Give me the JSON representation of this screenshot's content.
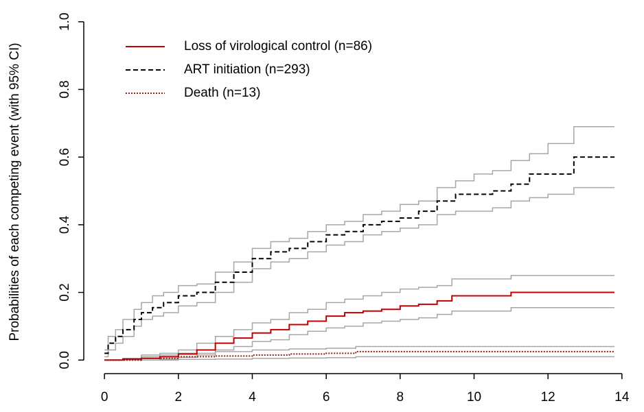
{
  "chart_data": {
    "type": "line",
    "drawstyle": "steps-post",
    "ylabel": "Probabilities of each competing event (with 95% CI)",
    "xlim": [
      -0.56,
      14.56
    ],
    "ylim": [
      -0.04,
      1.04
    ],
    "xticks": [
      0,
      2,
      4,
      6,
      8,
      10,
      12,
      14
    ],
    "yticks": [
      {
        "value": 0,
        "label": "0.0"
      },
      0.2,
      0.4,
      0.6,
      0.8,
      {
        "value": 1,
        "label": "1.0"
      }
    ],
    "ci_color": "#a6a6a6",
    "legend": "upper left",
    "series": [
      {
        "name": "Loss of virological control (n=86)",
        "color": "#c00000",
        "linestyle": "solid",
        "x": [
          0,
          0.5,
          1.0,
          1.5,
          2.0,
          2.5,
          3.0,
          3.5,
          4.0,
          4.5,
          5.0,
          5.5,
          6.0,
          6.5,
          7.0,
          7.5,
          8.0,
          8.5,
          9.0,
          9.4,
          10.0,
          11.0,
          12.0,
          13.8
        ],
        "values": [
          0,
          0.003,
          0.005,
          0.01,
          0.018,
          0.03,
          0.05,
          0.065,
          0.08,
          0.09,
          0.105,
          0.115,
          0.13,
          0.14,
          0.145,
          0.15,
          0.16,
          0.165,
          0.175,
          0.19,
          0.19,
          0.2,
          0.2,
          0.2
        ],
        "upper": [
          0,
          0.005,
          0.01,
          0.02,
          0.03,
          0.05,
          0.07,
          0.09,
          0.11,
          0.12,
          0.14,
          0.15,
          0.17,
          0.18,
          0.19,
          0.2,
          0.21,
          0.215,
          0.22,
          0.24,
          0.24,
          0.25,
          0.25,
          0.25
        ],
        "lower": [
          0,
          0,
          0,
          0.003,
          0.008,
          0.015,
          0.03,
          0.04,
          0.055,
          0.06,
          0.075,
          0.085,
          0.095,
          0.1,
          0.11,
          0.115,
          0.12,
          0.125,
          0.135,
          0.145,
          0.145,
          0.155,
          0.155,
          0.155
        ]
      },
      {
        "name": "ART initiation (n=293)",
        "color": "#000000",
        "linestyle": "dashed",
        "x": [
          0,
          0.1,
          0.3,
          0.5,
          0.8,
          1.0,
          1.3,
          1.6,
          2.0,
          2.5,
          3.0,
          3.5,
          4.0,
          4.5,
          5.0,
          5.5,
          6.0,
          6.5,
          7.0,
          7.5,
          8.0,
          8.5,
          9.0,
          9.5,
          10.0,
          10.5,
          11.0,
          11.5,
          12.0,
          12.7,
          13.8
        ],
        "values": [
          0.02,
          0.05,
          0.07,
          0.09,
          0.12,
          0.14,
          0.155,
          0.17,
          0.19,
          0.2,
          0.23,
          0.26,
          0.3,
          0.32,
          0.33,
          0.35,
          0.37,
          0.38,
          0.4,
          0.41,
          0.42,
          0.44,
          0.47,
          0.49,
          0.49,
          0.5,
          0.52,
          0.55,
          0.55,
          0.6,
          0.6
        ],
        "upper": [
          0.03,
          0.07,
          0.09,
          0.12,
          0.15,
          0.17,
          0.19,
          0.2,
          0.22,
          0.225,
          0.26,
          0.29,
          0.33,
          0.35,
          0.36,
          0.38,
          0.4,
          0.41,
          0.43,
          0.44,
          0.46,
          0.47,
          0.51,
          0.53,
          0.55,
          0.56,
          0.59,
          0.61,
          0.64,
          0.69,
          0.69
        ],
        "lower": [
          0.01,
          0.03,
          0.05,
          0.07,
          0.1,
          0.12,
          0.13,
          0.14,
          0.16,
          0.17,
          0.2,
          0.23,
          0.27,
          0.29,
          0.3,
          0.32,
          0.34,
          0.35,
          0.37,
          0.38,
          0.39,
          0.4,
          0.43,
          0.44,
          0.44,
          0.45,
          0.47,
          0.48,
          0.49,
          0.51,
          0.51
        ]
      },
      {
        "name": "Death (n=13)",
        "color": "#8b1a1a",
        "linestyle": "dotted",
        "x": [
          0,
          1,
          2,
          3,
          4,
          5,
          6,
          6.8,
          13.8
        ],
        "values": [
          0,
          0.005,
          0.01,
          0.012,
          0.015,
          0.018,
          0.02,
          0.025,
          0.025
        ],
        "upper": [
          0,
          0.015,
          0.02,
          0.025,
          0.03,
          0.033,
          0.035,
          0.04,
          0.04
        ],
        "lower": [
          0,
          0,
          0.002,
          0.003,
          0.005,
          0.006,
          0.007,
          0.01,
          0.01
        ]
      }
    ]
  }
}
